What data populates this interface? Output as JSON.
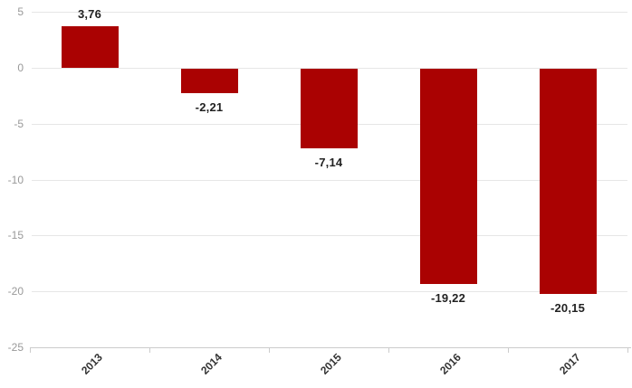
{
  "chart_data": {
    "type": "bar",
    "title": "",
    "xlabel": "",
    "ylabel": "",
    "legend": "none",
    "grid": true,
    "categories": [
      "2013",
      "2014",
      "2015",
      "2016",
      "2017"
    ],
    "values": [
      3.76,
      -2.21,
      -7.14,
      -19.22,
      -20.15
    ],
    "value_labels": [
      "3,76",
      "-2,21",
      "-7,14",
      "-19,22",
      "-20,15"
    ],
    "yticks": [
      5,
      0,
      -5,
      -10,
      -15,
      -20,
      -25
    ],
    "ytick_labels": [
      "5",
      "0",
      "-5",
      "-10",
      "-15",
      "-20",
      "-25"
    ],
    "ylim": [
      -25,
      5
    ]
  },
  "colors": {
    "bar": "#aa0202",
    "gridline": "#e6e6e6",
    "axis_line": "#cccccc",
    "tick": "#cccccc",
    "y_label": "#999999",
    "x_label": "#333333",
    "data_label": "#222222",
    "background": "#ffffff"
  }
}
